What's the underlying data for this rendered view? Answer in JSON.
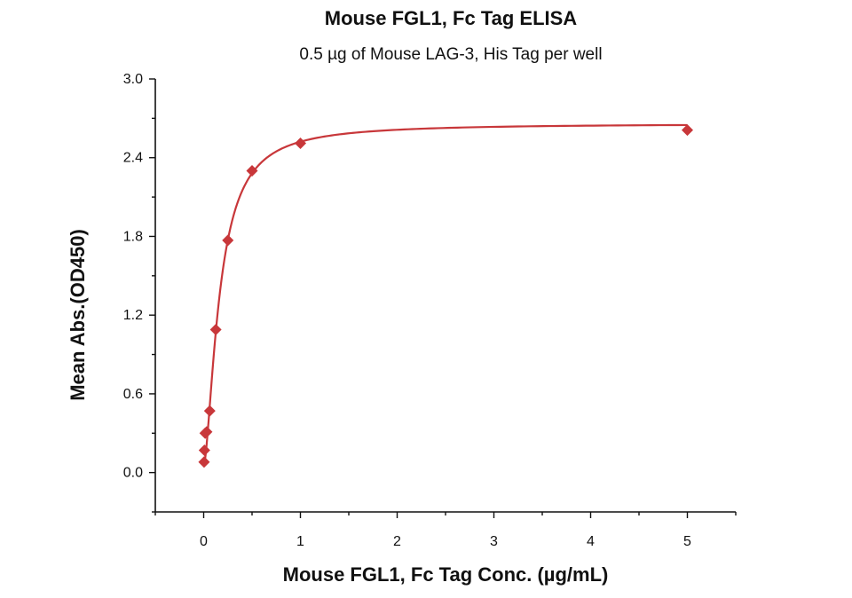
{
  "chart_data": {
    "type": "scatter",
    "title": "Mouse FGL1, Fc Tag ELISA",
    "subtitle": "0.5 µg of Mouse LAG-3, His Tag per well",
    "xlabel": "Mouse FGL1, Fc Tag Conc. (µg/mL)",
    "ylabel": "Mean Abs.(OD450)",
    "xlim": [
      -0.5,
      5.5
    ],
    "ylim": [
      -0.3,
      3.0
    ],
    "x_ticks": [
      0,
      1,
      2,
      3,
      4,
      5
    ],
    "x_tick_labels": [
      "0",
      "1",
      "2",
      "3",
      "4",
      "5"
    ],
    "y_ticks": [
      0.0,
      0.6,
      1.2,
      1.8,
      2.4,
      3.0
    ],
    "y_tick_labels": [
      "0.0",
      "0.6",
      "1.2",
      "1.8",
      "2.4",
      "3.0"
    ],
    "grid": false,
    "series": [
      {
        "marker": "diamond",
        "color": "#c8373a",
        "x": [
          0.0039,
          0.0078,
          0.0156,
          0.0313,
          0.0625,
          0.125,
          0.25,
          0.5,
          1.0,
          5.0
        ],
        "y": [
          0.08,
          0.17,
          0.3,
          0.31,
          0.47,
          1.09,
          1.77,
          2.3,
          2.51,
          2.61
        ]
      }
    ],
    "fit_curve": {
      "model": "4PL",
      "color": "#c8373a",
      "bottom": 0.05,
      "top": 2.66,
      "ec50": 0.165,
      "hill": 1.6
    }
  }
}
